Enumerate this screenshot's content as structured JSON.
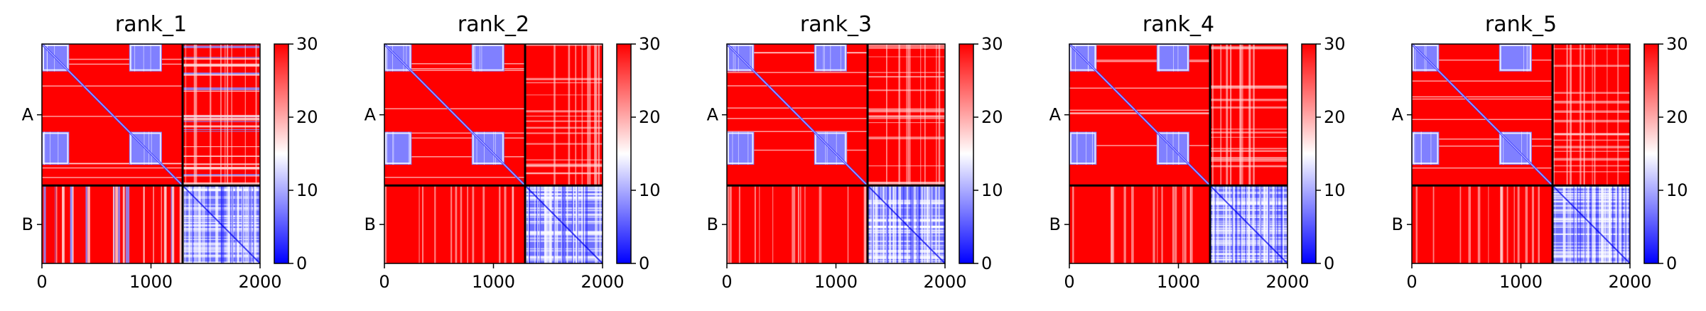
{
  "chart_data": [
    {
      "type": "heatmap",
      "title": "rank_1",
      "x_ticks": [
        "0",
        "1000",
        "2000"
      ],
      "y_ticks": [
        "A",
        "B"
      ],
      "xlim": [
        0,
        2000
      ],
      "colorbar": {
        "vmin": 0,
        "vmax": 30,
        "ticks": [
          "0",
          "10",
          "20",
          "30"
        ],
        "colors": [
          "#0000ff",
          "#ffffff",
          "#ff0000"
        ]
      },
      "split_at": 1290,
      "blocks": {
        "A_A": "mostly red (>30) with blue sub-squares near 0-250 and 800-1100, blue diagonal",
        "A_B": "mixed red/white/blue striped",
        "B_B": "blue (low)"
      }
    },
    {
      "type": "heatmap",
      "title": "rank_2",
      "x_ticks": [
        "0",
        "1000",
        "2000"
      ],
      "y_ticks": [
        "A",
        "B"
      ],
      "xlim": [
        0,
        2000
      ],
      "colorbar": {
        "vmin": 0,
        "vmax": 30,
        "ticks": [
          "0",
          "10",
          "20",
          "30"
        ],
        "colors": [
          "#0000ff",
          "#ffffff",
          "#ff0000"
        ]
      },
      "split_at": 1290,
      "blocks": {
        "A_A": "mostly red with blue sub-squares, blue diagonal",
        "A_B": "red with light striping",
        "B_B": "blue (low)"
      }
    },
    {
      "type": "heatmap",
      "title": "rank_3",
      "x_ticks": [
        "0",
        "1000",
        "2000"
      ],
      "y_ticks": [
        "A",
        "B"
      ],
      "xlim": [
        0,
        2000
      ],
      "colorbar": {
        "vmin": 0,
        "vmax": 30,
        "ticks": [
          "0",
          "10",
          "20",
          "30"
        ],
        "colors": [
          "#0000ff",
          "#ffffff",
          "#ff0000"
        ]
      },
      "split_at": 1290,
      "blocks": {
        "A_A": "mostly red with blue sub-squares, blue diagonal",
        "A_B": "red with light striping",
        "B_B": "blue (low)"
      }
    },
    {
      "type": "heatmap",
      "title": "rank_4",
      "x_ticks": [
        "0",
        "1000",
        "2000"
      ],
      "y_ticks": [
        "A",
        "B"
      ],
      "xlim": [
        0,
        2000
      ],
      "colorbar": {
        "vmin": 0,
        "vmax": 30,
        "ticks": [
          "0",
          "10",
          "20",
          "30"
        ],
        "colors": [
          "#0000ff",
          "#ffffff",
          "#ff0000"
        ]
      },
      "split_at": 1290,
      "blocks": {
        "A_A": "mostly red with blue sub-squares, blue diagonal",
        "A_B": "red with light striping",
        "B_B": "blue (low)"
      }
    },
    {
      "type": "heatmap",
      "title": "rank_5",
      "x_ticks": [
        "0",
        "1000",
        "2000"
      ],
      "y_ticks": [
        "A",
        "B"
      ],
      "xlim": [
        0,
        2000
      ],
      "colorbar": {
        "vmin": 0,
        "vmax": 30,
        "ticks": [
          "0",
          "10",
          "20",
          "30"
        ],
        "colors": [
          "#0000ff",
          "#ffffff",
          "#ff0000"
        ]
      },
      "split_at": 1290,
      "blocks": {
        "A_A": "mostly red with blue sub-squares, blue diagonal",
        "A_B": "red with light striping",
        "B_B": "blue (low)"
      }
    }
  ]
}
